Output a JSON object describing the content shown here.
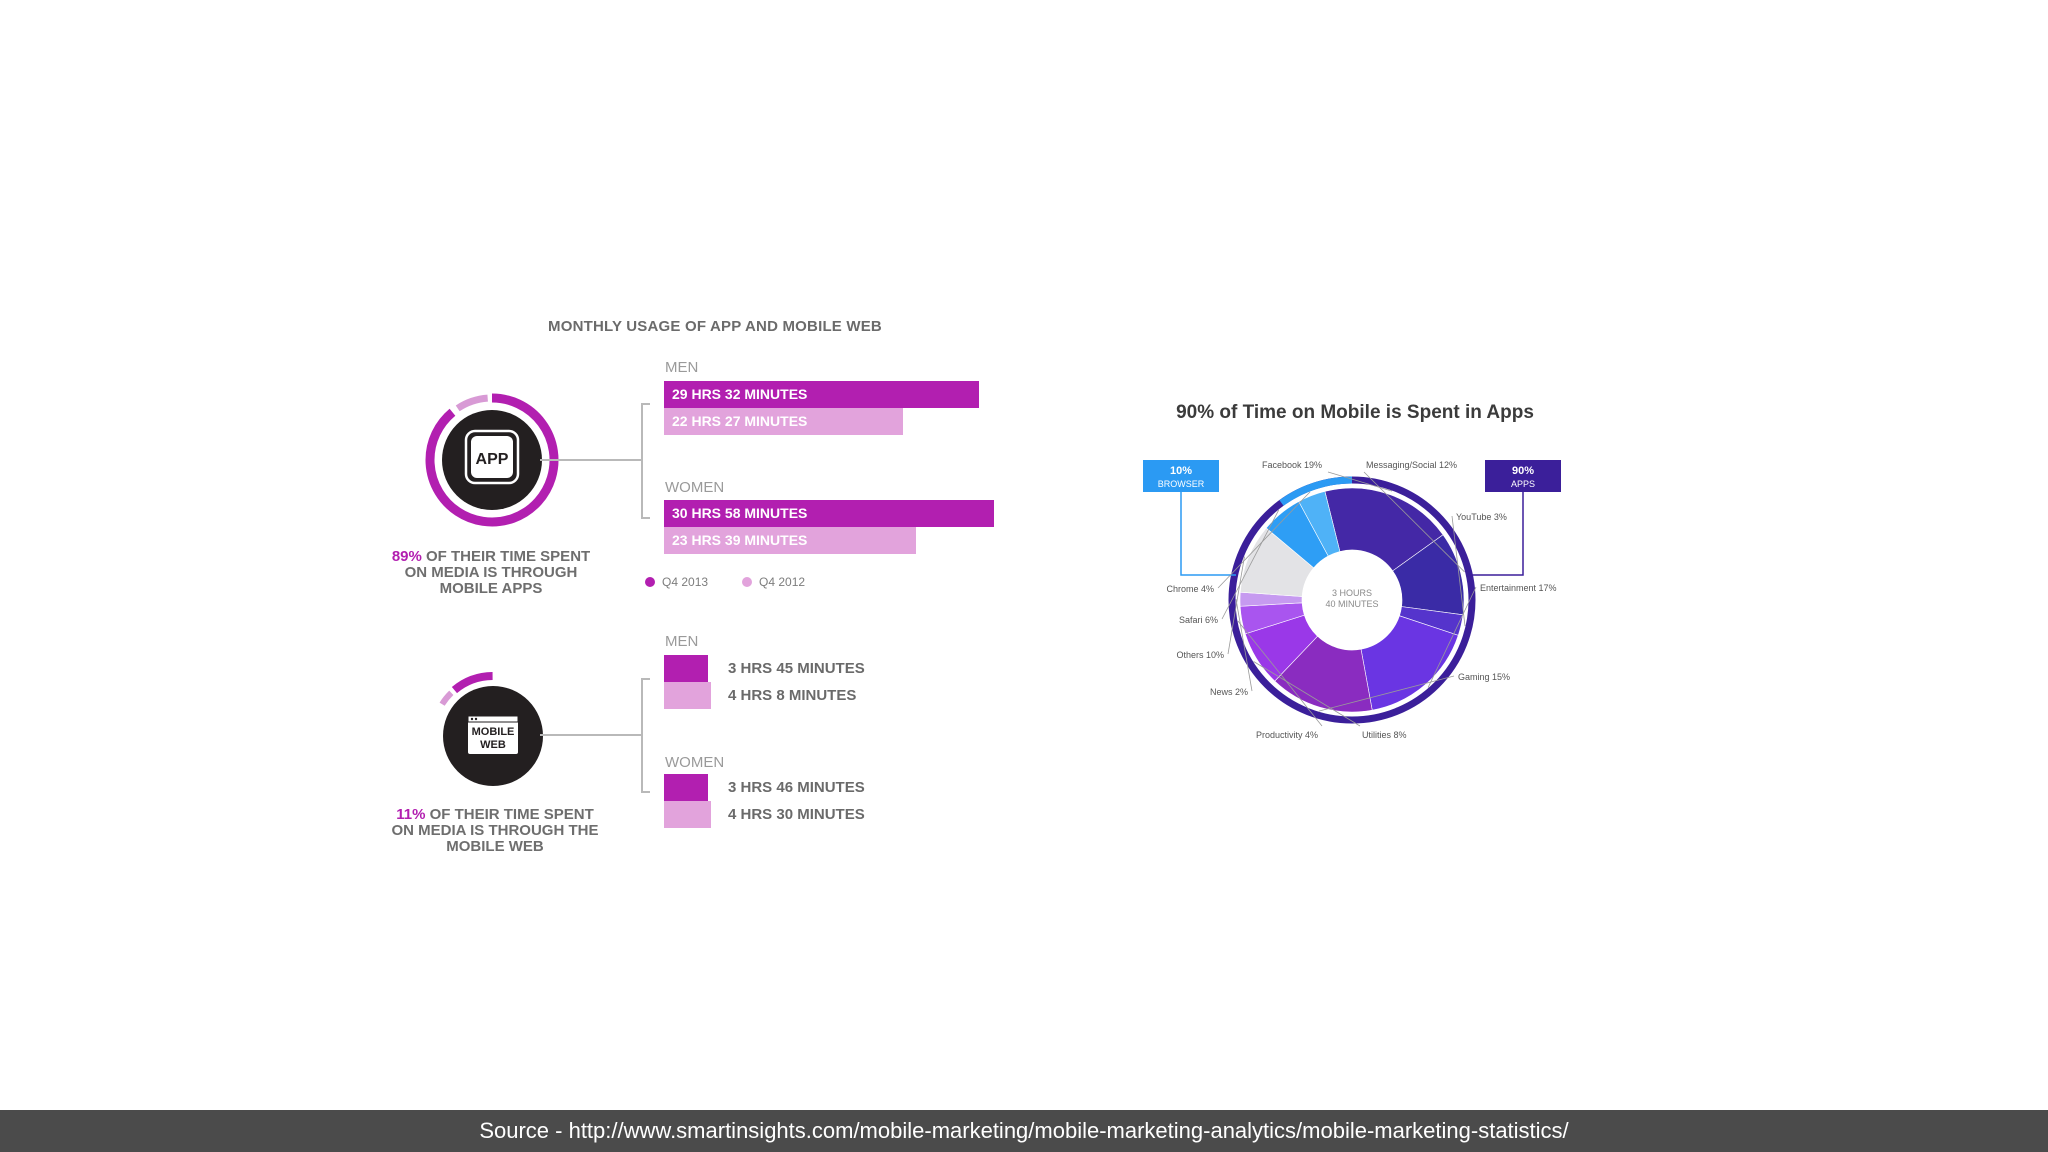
{
  "left": {
    "title": "MONTHLY USAGE OF APP AND MOBILE WEB",
    "app_icon_label": "APP",
    "web_icon_label_1": "MOBILE",
    "web_icon_label_2": "WEB",
    "app_caption": {
      "pct": "89%",
      "line1_rest": " OF THEIR TIME SPENT",
      "line2": "ON MEDIA IS THROUGH",
      "line3": "MOBILE APPS"
    },
    "web_caption": {
      "pct": "11%",
      "line1_rest": " OF THEIR TIME SPENT",
      "line2": "ON MEDIA IS THROUGH THE",
      "line3": "MOBILE WEB"
    },
    "app_share": 0.89,
    "web_share": 0.11,
    "legend": {
      "q4_2013": "Q4 2013",
      "q4_2012": "Q4 2012"
    },
    "colors": {
      "q4_2013": "#b21fb0",
      "q4_2012": "#e2a3dc",
      "ring_2012": "#d89ad5",
      "icon_dark": "#231f20"
    }
  },
  "chart_data": [
    {
      "type": "bar",
      "title": "MONTHLY USAGE OF APP AND MOBILE WEB",
      "subject": "APP",
      "categories": [
        "MEN",
        "WOMEN"
      ],
      "series": [
        {
          "name": "Q4 2013",
          "values_minutes": [
            1772,
            1858
          ],
          "labels": [
            "29 HRS 32 MINUTES",
            "30 HRS 58 MINUTES"
          ]
        },
        {
          "name": "Q4 2012",
          "values_minutes": [
            1347,
            1419
          ],
          "labels": [
            "22 HRS 27 MINUTES",
            "23 HRS 39 MINUTES"
          ]
        }
      ]
    },
    {
      "type": "bar",
      "subject": "MOBILE WEB",
      "categories": [
        "MEN",
        "WOMEN"
      ],
      "series": [
        {
          "name": "Q4 2013",
          "values_minutes": [
            225,
            226
          ],
          "labels": [
            "3 HRS 45 MINUTES",
            "3 HRS 46 MINUTES"
          ]
        },
        {
          "name": "Q4 2012",
          "values_minutes": [
            248,
            270
          ],
          "labels": [
            "4 HRS 8 MINUTES",
            "4 HRS 30 MINUTES"
          ]
        }
      ]
    },
    {
      "type": "pie",
      "title": "90% of Time on Mobile is Spent in Apps",
      "center_label": [
        "3 HOURS",
        "40 MINUTES"
      ],
      "outer": [
        {
          "label": "10%",
          "sub": "BROWSER",
          "value": 10,
          "color": "#2b9af3"
        },
        {
          "label": "90%",
          "sub": "APPS",
          "value": 90,
          "color": "#3b1f9a"
        }
      ],
      "slices": [
        {
          "name": "Facebook",
          "value": 19,
          "text": "Facebook 19%",
          "color": "#4428a6"
        },
        {
          "name": "Messaging/Social",
          "value": 12,
          "text": "Messaging/Social 12%",
          "color": "#3a2ba6"
        },
        {
          "name": "YouTube",
          "value": 3,
          "text": "YouTube 3%",
          "color": "#5534cc"
        },
        {
          "name": "Entertainment",
          "value": 17,
          "text": "Entertainment 17%",
          "color": "#6a35e3"
        },
        {
          "name": "Gaming",
          "value": 15,
          "text": "Gaming 15%",
          "color": "#8a2cc0"
        },
        {
          "name": "Utilities",
          "value": 8,
          "text": "Utilities 8%",
          "color": "#9a38e8"
        },
        {
          "name": "Productivity",
          "value": 4,
          "text": "Productivity 4%",
          "color": "#a955ef"
        },
        {
          "name": "News",
          "value": 2,
          "text": "News 2%",
          "color": "#c69af0"
        },
        {
          "name": "Others",
          "value": 10,
          "text": "Others 10%",
          "color": "#e3e3e6"
        },
        {
          "name": "Safari",
          "value": 6,
          "text": "Safari 6%",
          "color": "#2e9ef5"
        },
        {
          "name": "Chrome",
          "value": 4,
          "text": "Chrome 4%",
          "color": "#4fb2f7"
        }
      ]
    }
  ],
  "footer": {
    "text": "Source  - http://www.smartinsights.com/mobile-marketing/mobile-marketing-analytics/mobile-marketing-statistics/"
  }
}
